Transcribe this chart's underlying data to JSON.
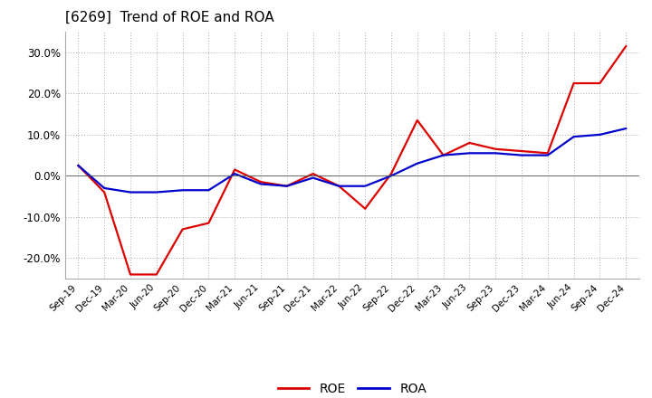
{
  "title": "[6269]  Trend of ROE and ROA",
  "x_labels": [
    "Sep-19",
    "Dec-19",
    "Mar-20",
    "Jun-20",
    "Sep-20",
    "Dec-20",
    "Mar-21",
    "Jun-21",
    "Sep-21",
    "Dec-21",
    "Mar-22",
    "Jun-22",
    "Sep-22",
    "Dec-22",
    "Mar-23",
    "Jun-23",
    "Sep-23",
    "Dec-23",
    "Mar-24",
    "Jun-24",
    "Sep-24",
    "Dec-24"
  ],
  "roe": [
    2.5,
    -4.0,
    -24.0,
    -24.0,
    -13.0,
    -11.5,
    1.5,
    -1.5,
    -2.5,
    0.5,
    -2.5,
    -8.0,
    0.5,
    13.5,
    5.0,
    8.0,
    6.5,
    6.0,
    5.5,
    22.5,
    22.5,
    31.5
  ],
  "roa": [
    2.5,
    -3.0,
    -4.0,
    -4.0,
    -3.5,
    -3.5,
    0.5,
    -2.0,
    -2.5,
    -0.5,
    -2.5,
    -2.5,
    0.0,
    3.0,
    5.0,
    5.5,
    5.5,
    5.0,
    5.0,
    9.5,
    10.0,
    11.5
  ],
  "roe_color": "#dd0000",
  "roa_color": "#0000cc",
  "background_color": "#ffffff",
  "grid_color": "#aaaaaa",
  "ylim": [
    -25,
    35
  ],
  "yticks": [
    -20,
    -10,
    0,
    10,
    20,
    30
  ],
  "legend_labels": [
    "ROE",
    "ROA"
  ],
  "figsize": [
    7.2,
    4.4
  ],
  "dpi": 100
}
